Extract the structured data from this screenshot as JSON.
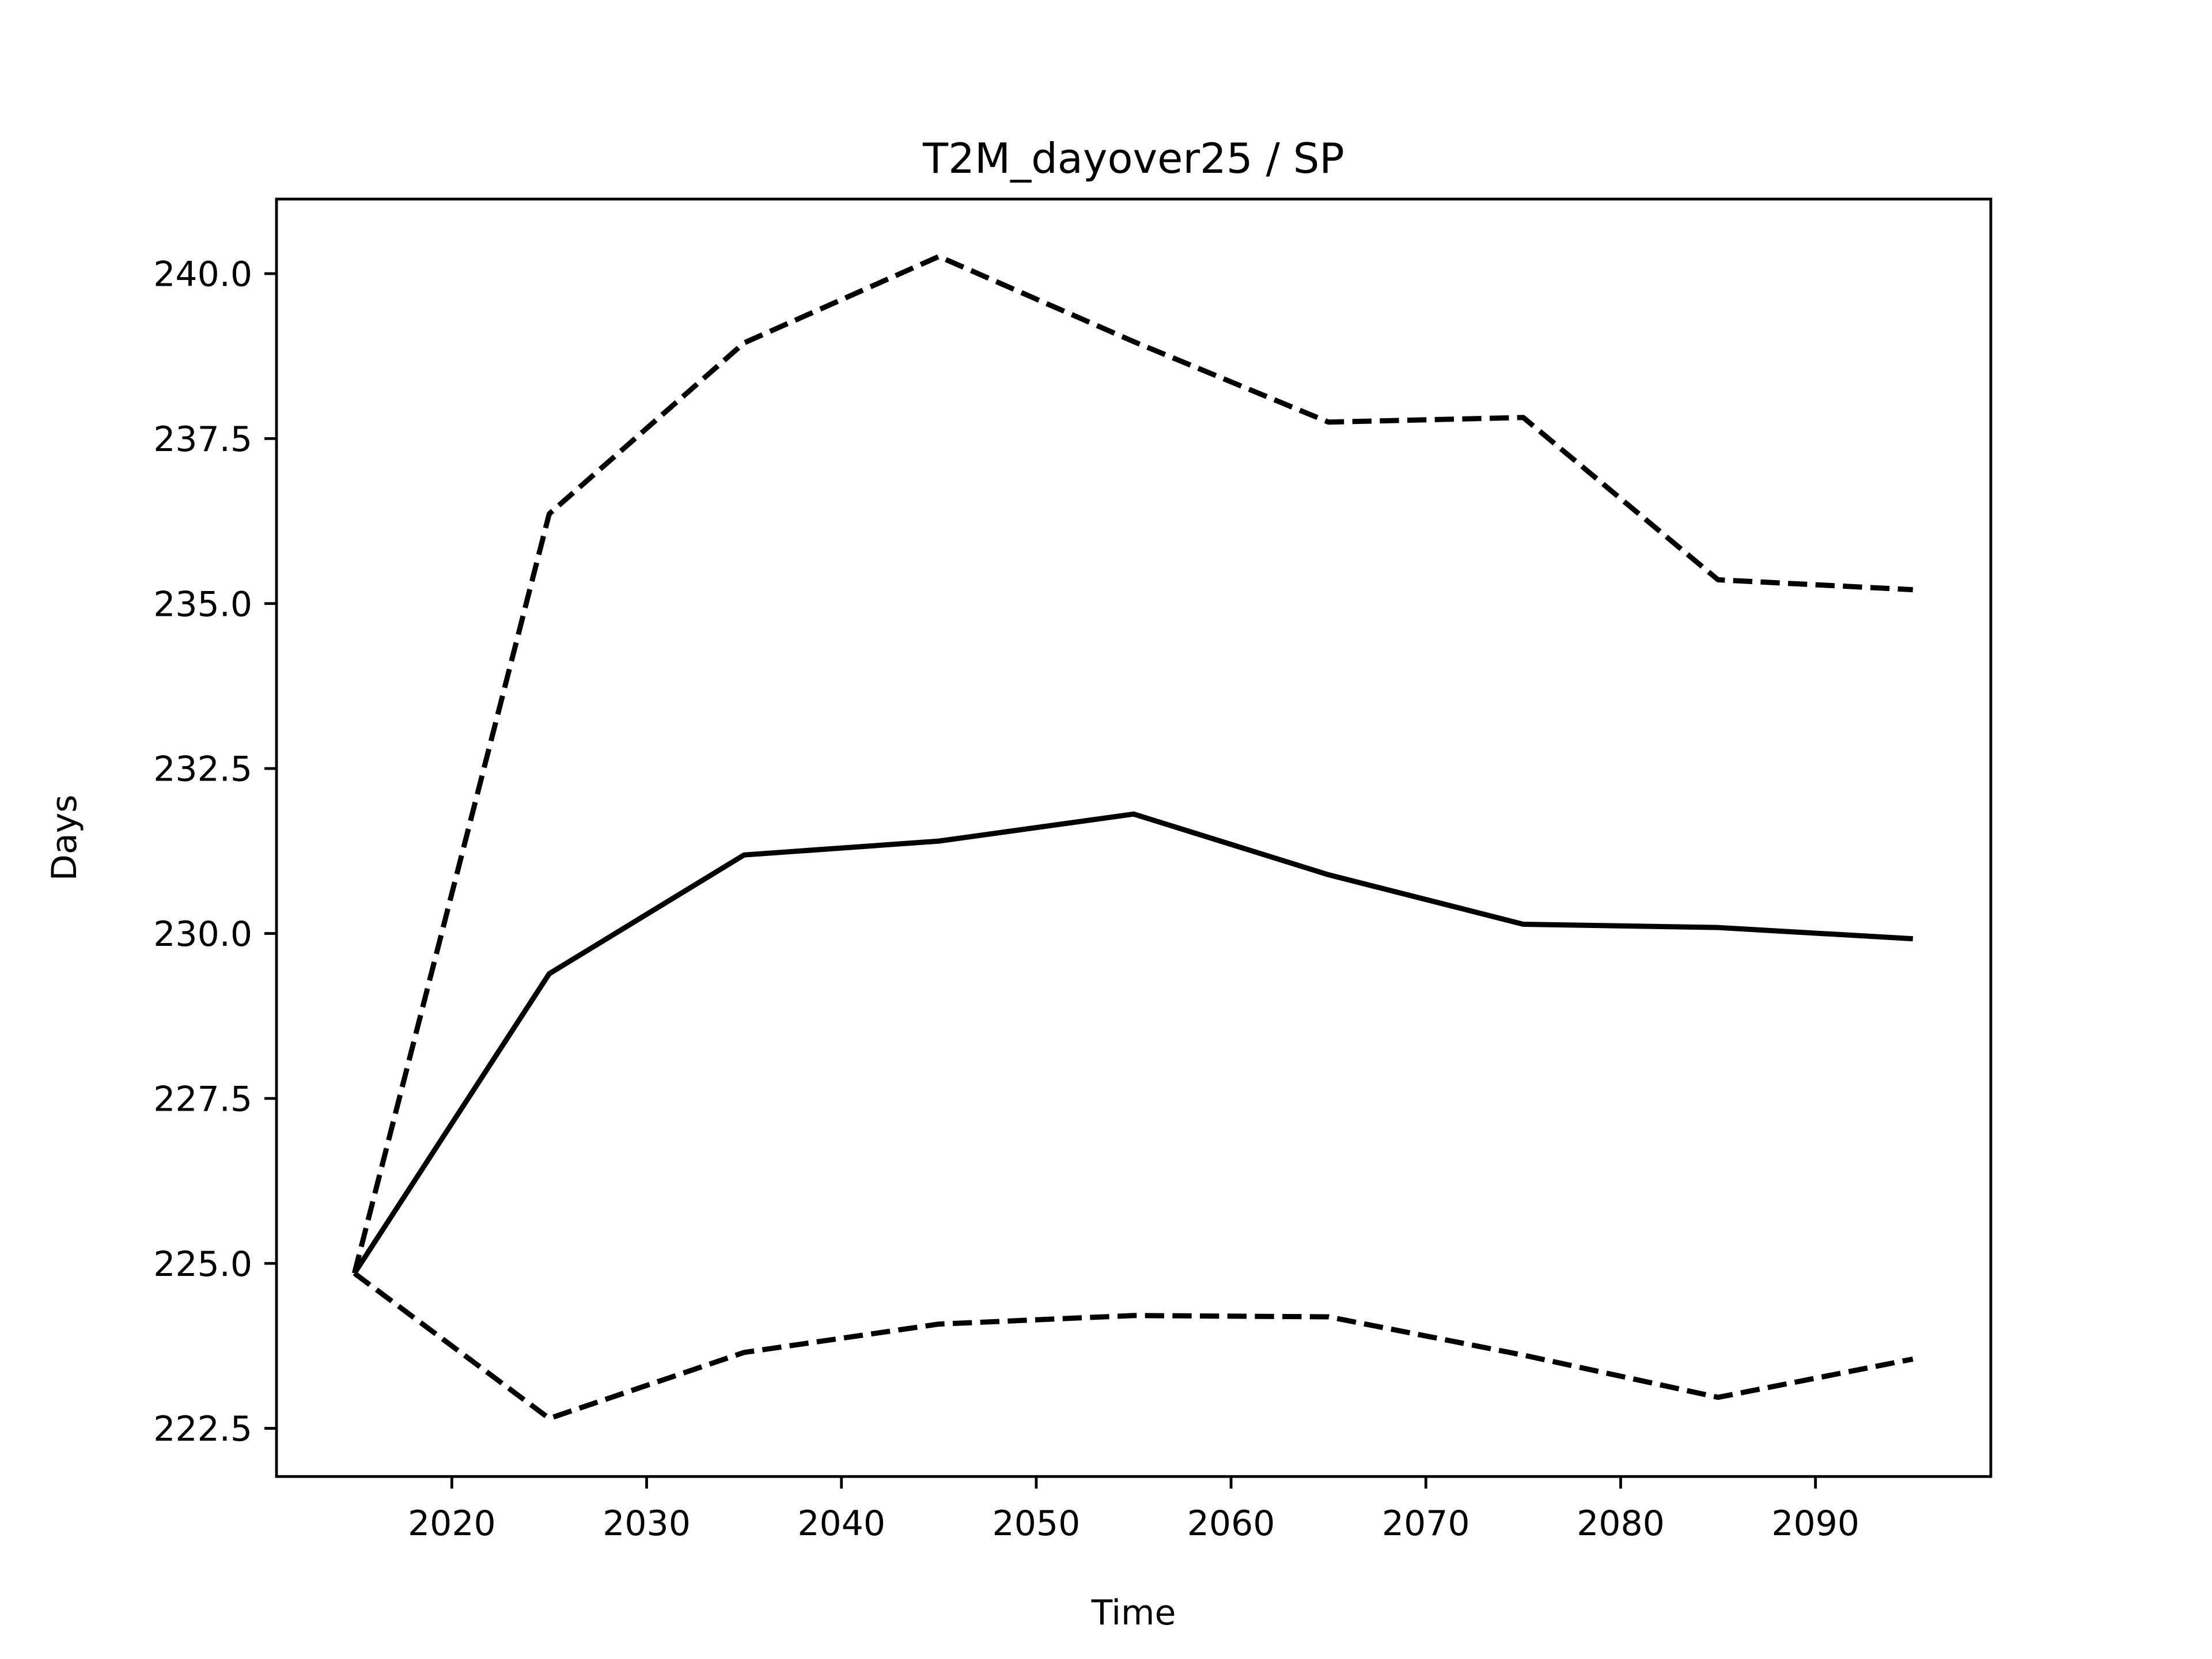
{
  "chart_data": {
    "type": "line",
    "title": "T2M_dayover25 / SP",
    "x_label": "Time",
    "y_label": "Days",
    "x": [
      2015,
      2025,
      2035,
      2045,
      2055,
      2065,
      2075,
      2085,
      2095
    ],
    "series": [
      {
        "color": "#000000",
        "linestyle": "solid",
        "values": [
          224.85,
          229.39,
          231.19,
          231.4,
          231.81,
          230.89,
          230.14,
          230.09,
          229.92
        ]
      },
      {
        "color": "#000000",
        "linestyle": "dashed",
        "values": [
          224.85,
          236.36,
          238.95,
          240.26,
          238.97,
          237.75,
          237.82,
          235.36,
          235.21
        ]
      },
      {
        "color": "#000000",
        "linestyle": "dashed",
        "values": [
          224.85,
          222.65,
          223.65,
          224.08,
          224.21,
          224.19,
          223.61,
          222.97,
          223.55
        ]
      }
    ],
    "xlim": [
      2011,
      2099
    ],
    "ylim": [
      221.77,
      241.13
    ],
    "xticks": [
      2020,
      2030,
      2040,
      2050,
      2060,
      2070,
      2080,
      2090
    ],
    "yticks": [
      {
        "value": 222.5,
        "label": "222.5"
      },
      {
        "value": 225,
        "label": "225.0"
      },
      {
        "value": 227.5,
        "label": "227.5"
      },
      {
        "value": 230,
        "label": "230.0"
      },
      {
        "value": 232.5,
        "label": "232.5"
      },
      {
        "value": 235,
        "label": "235.0"
      },
      {
        "value": 237.5,
        "label": "237.5"
      },
      {
        "value": 240,
        "label": "240.0"
      }
    ],
    "grid": false
  }
}
